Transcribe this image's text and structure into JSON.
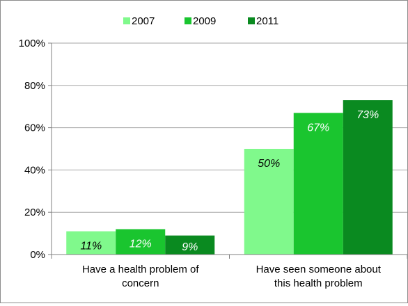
{
  "chart_data": {
    "type": "bar",
    "categories": [
      "Have a health problem of concern",
      "Have seen someone about this health problem"
    ],
    "category_lines": [
      [
        "Have a health problem of",
        "concern"
      ],
      [
        "Have seen someone about",
        "this health problem"
      ]
    ],
    "series": [
      {
        "name": "2007",
        "values": [
          11,
          50
        ],
        "color": "#80f98c",
        "labels": [
          "11%",
          "50%"
        ]
      },
      {
        "name": "2009",
        "values": [
          12,
          67
        ],
        "color": "#1ac52f",
        "labels": [
          "12%",
          "67%"
        ]
      },
      {
        "name": "2011",
        "values": [
          9,
          73
        ],
        "color": "#0a8a20",
        "labels": [
          "9%",
          "73%"
        ]
      }
    ],
    "ylim": [
      0,
      100
    ],
    "yticks": [
      0,
      20,
      40,
      60,
      80,
      100
    ],
    "ytick_labels": [
      "0%",
      "20%",
      "40%",
      "60%",
      "80%",
      "100%"
    ],
    "grid": true,
    "legend": "top-center",
    "label_color_light": "#000000",
    "label_color_dark": "#ffffff",
    "gridline_color": "#a6a6a6"
  }
}
